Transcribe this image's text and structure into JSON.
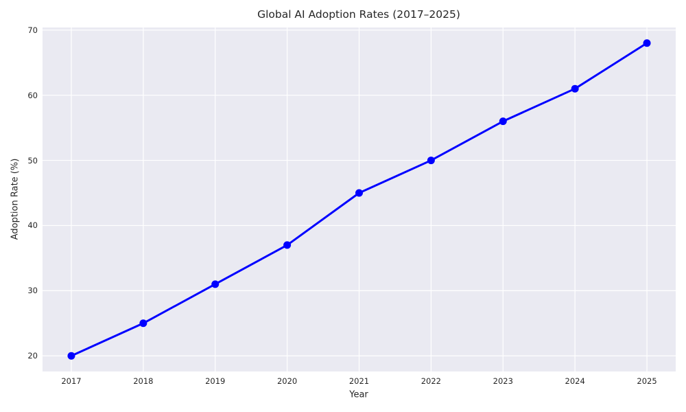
{
  "chart_data": {
    "type": "line",
    "title": "Global AI Adoption Rates (2017–2025)",
    "xlabel": "Year",
    "ylabel": "Adoption Rate (%)",
    "x": [
      2017,
      2018,
      2019,
      2020,
      2021,
      2022,
      2023,
      2024,
      2025
    ],
    "values": [
      20,
      25,
      31,
      37,
      45,
      50,
      56,
      61,
      68
    ],
    "xticks": [
      2017,
      2018,
      2019,
      2020,
      2021,
      2022,
      2023,
      2024,
      2025
    ],
    "yticks": [
      20,
      30,
      40,
      50,
      60,
      70
    ],
    "xlim": [
      2016.6,
      2025.4
    ],
    "ylim": [
      17.6,
      70.4
    ],
    "grid": true,
    "legend": "none",
    "line_color": "#0000ff",
    "marker": "circle",
    "plot_bg_color": "#eaeaf2",
    "grid_color": "#ffffff",
    "text_color": "#262626"
  }
}
